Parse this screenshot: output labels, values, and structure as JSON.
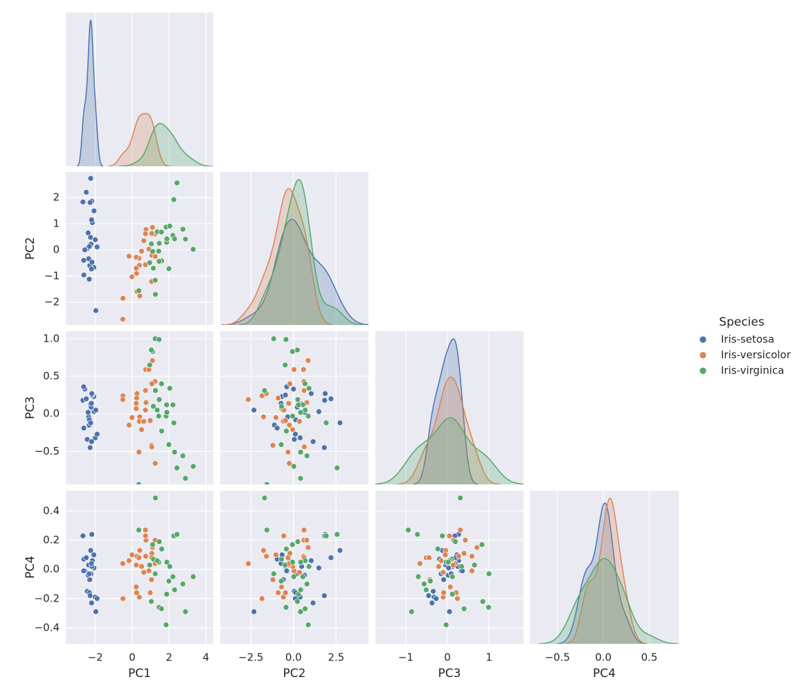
{
  "chart_data": {
    "type": "pairplot",
    "legend_title": "Species",
    "legend_position": "right",
    "background": "#eaeaf2",
    "grid": true,
    "variables": [
      {
        "name": "PC1",
        "xlim": [
          -3.6,
          4.4
        ],
        "xticks": [
          {
            "value": -2,
            "label": "−2"
          },
          0,
          2,
          4
        ]
      },
      {
        "name": "PC2",
        "xlim": [
          -4.3,
          4.4
        ],
        "xticks": [
          {
            "value": -2.5,
            "label": "−2.5"
          },
          {
            "value": 0,
            "label": "0.0"
          },
          2.5
        ],
        "ylim": [
          -2.87,
          2.98
        ],
        "yticks": [
          {
            "value": -2,
            "label": "−2"
          },
          {
            "value": -1,
            "label": "−1"
          },
          0,
          1,
          2
        ]
      },
      {
        "name": "PC3",
        "xlim": [
          -1.73,
          1.83
        ],
        "xticks": [
          {
            "value": -1,
            "label": "−1"
          },
          0,
          1
        ],
        "ylim": [
          -0.94,
          1.1
        ],
        "yticks": [
          {
            "value": -0.5,
            "label": "−0.5"
          },
          {
            "value": 0,
            "label": "0.0"
          },
          0.5,
          {
            "value": 1,
            "label": "1.0"
          }
        ]
      },
      {
        "name": "PC4",
        "xlim": [
          -0.8,
          0.82
        ],
        "xticks": [
          {
            "value": -0.5,
            "label": "−0.5"
          },
          {
            "value": 0,
            "label": "0.0"
          },
          0.5
        ],
        "ylim": [
          -0.51,
          0.54
        ],
        "yticks": [
          {
            "value": -0.4,
            "label": "−0.4"
          },
          {
            "value": -0.2,
            "label": "−0.2"
          },
          {
            "value": 0,
            "label": "0.0"
          },
          0.2,
          0.4
        ]
      }
    ],
    "series": [
      {
        "name": "Iris-setosa",
        "color": "#4c72b0",
        "values": [
          [
            -2.26,
            0.48,
            0.13,
            0.02
          ],
          [
            -2.08,
            -0.67,
            0.23,
            0.1
          ],
          [
            -2.36,
            -0.34,
            -0.04,
            0.03
          ],
          [
            -2.3,
            -0.6,
            -0.09,
            -0.07
          ],
          [
            -2.39,
            0.65,
            0.02,
            -0.04
          ],
          [
            -2.07,
            1.49,
            0.03,
            0.01
          ],
          [
            -2.44,
            0.05,
            -0.34,
            -0.15
          ],
          [
            -2.23,
            0.22,
            0.09,
            -0.03
          ],
          [
            -2.33,
            -1.12,
            -0.15,
            -0.03
          ],
          [
            -2.18,
            -0.47,
            0.25,
            0.02
          ],
          [
            -2.16,
            1.04,
            0.27,
            0.06
          ],
          [
            -2.32,
            0.13,
            -0.08,
            -0.16
          ],
          [
            -2.21,
            -0.73,
            0.14,
            0.04
          ],
          [
            -2.62,
            -0.96,
            -0.19,
            0.07
          ],
          [
            -2.19,
            1.86,
            0.27,
            0.24
          ],
          [
            -2.25,
            2.73,
            -0.12,
            0.13
          ],
          [
            -2.28,
            1.81,
            -0.45,
            -0.18
          ],
          [
            -2.0,
            0.39,
            -0.32,
            -0.19
          ],
          [
            -1.97,
            -2.32,
            0.05,
            -0.29
          ],
          [
            -2.57,
            0.0,
            0.33,
            -0.01
          ],
          [
            -2.2,
            1.15,
            -0.37,
            -0.23
          ],
          [
            -2.67,
            1.83,
            0.18,
            0.23
          ],
          [
            -2.63,
            -0.4,
            0.36,
            -0.01
          ],
          [
            -2.49,
            2.2,
            0.2,
            0.08
          ],
          [
            -1.9,
            0.11,
            -0.27,
            -0.2
          ]
        ]
      },
      {
        "name": "Iris-versicolor",
        "color": "#dd8452",
        "values": [
          [
            1.1,
            0.86,
            0.71,
            0.15
          ],
          [
            0.73,
            0.59,
            0.59,
            0.09
          ],
          [
            1.24,
            0.61,
            0.43,
            0.2
          ],
          [
            0.41,
            -1.76,
            -0.04,
            0.13
          ],
          [
            1.07,
            -0.21,
            0.4,
            0.11
          ],
          [
            0.39,
            -0.59,
            -0.1,
            -0.19
          ],
          [
            0.75,
            0.78,
            0.15,
            0.2
          ],
          [
            -0.5,
            -1.85,
            0.24,
            -0.2
          ],
          [
            0.91,
            0.03,
            0.59,
            -0.01
          ],
          [
            -0.01,
            -1.03,
            -0.05,
            0.1
          ],
          [
            -0.51,
            -2.65,
            0.19,
            0.04
          ],
          [
            0.51,
            -0.05,
            -0.21,
            0.02
          ],
          [
            0.26,
            -1.59,
            0.27,
            0.09
          ],
          [
            0.98,
            -0.47,
            -0.09,
            -0.16
          ],
          [
            -0.17,
            -0.24,
            -0.15,
            0.06
          ],
          [
            0.72,
            0.62,
            0.31,
            0.27
          ],
          [
            0.37,
            -0.32,
            -0.51,
            0.08
          ],
          [
            0.24,
            -0.9,
            0.21,
            -0.16
          ],
          [
            1.05,
            -1.21,
            -0.42,
            -0.07
          ],
          [
            0.22,
            -0.7,
            0.07,
            -0.12
          ],
          [
            1.06,
            0.63,
            -0.44,
            0.08
          ],
          [
            0.22,
            -0.28,
            0.14,
            0.03
          ],
          [
            1.25,
            -0.25,
            -0.66,
            0.04
          ],
          [
            0.72,
            -0.57,
            0.05,
            0.23
          ],
          [
            0.63,
            0.35,
            -0.1,
            -0.02
          ]
        ]
      },
      {
        "name": "Iris-virginica",
        "color": "#55a868",
        "values": [
          [
            1.84,
            0.87,
            -0.03,
            -0.38
          ],
          [
            1.15,
            -0.7,
            0.1,
            0.07
          ],
          [
            2.21,
            0.55,
            0.12,
            -0.05
          ],
          [
            1.44,
            -0.05,
            -0.03,
            0.05
          ],
          [
            1.87,
            0.29,
            0.12,
            -0.17
          ],
          [
            2.75,
            0.79,
            -0.56,
            -0.1
          ],
          [
            0.36,
            -1.56,
            -0.94,
            0.27
          ],
          [
            2.3,
            0.42,
            -0.51,
            -0.14
          ],
          [
            1.99,
            -0.72,
            -0.41,
            -0.08
          ],
          [
            2.26,
            1.92,
            -0.12,
            0.23
          ],
          [
            1.36,
            0.69,
            0.05,
            0.06
          ],
          [
            1.6,
            -0.42,
            -0.23,
            0.14
          ],
          [
            1.88,
            0.42,
            0.02,
            0.05
          ],
          [
            1.25,
            -1.16,
            1.0,
            -0.03
          ],
          [
            1.46,
            -0.44,
            0.99,
            -0.26
          ],
          [
            1.59,
            0.68,
            0.4,
            -0.27
          ],
          [
            1.47,
            0.25,
            0.19,
            0.19
          ],
          [
            2.43,
            2.56,
            -0.72,
            0.24
          ],
          [
            3.31,
            0.02,
            -0.7,
            -0.05
          ],
          [
            1.26,
            -1.7,
            0.31,
            0.49
          ],
          [
            2.04,
            0.91,
            0.34,
            0.02
          ],
          [
            0.95,
            -0.49,
            0.65,
            0.03
          ],
          [
            2.89,
            0.41,
            -0.86,
            -0.29
          ],
          [
            1.11,
            -0.06,
            0.83,
            0.17
          ],
          [
            1.04,
            0.23,
            0.85,
            -0.22
          ]
        ]
      }
    ]
  }
}
